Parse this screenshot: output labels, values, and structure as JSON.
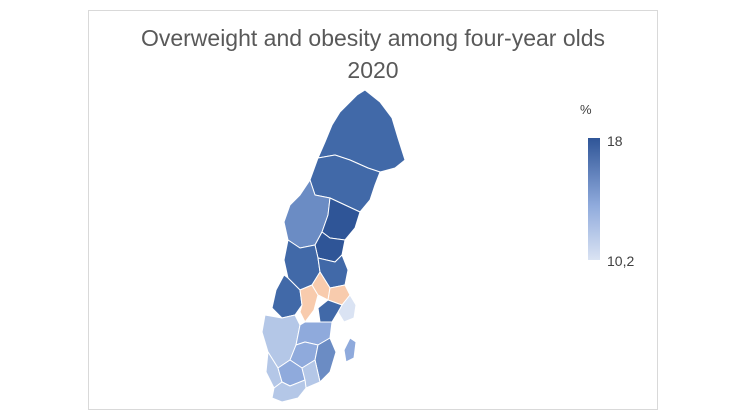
{
  "title": {
    "line1": "Overweight and obesity among four-year olds",
    "line2": "2020"
  },
  "legend": {
    "unit": "%",
    "max_label": "18",
    "min_label": "10,2",
    "max_color": "#2f5597",
    "min_color": "#dae3f3"
  },
  "colors": {
    "high": "#2f5597",
    "mid_high": "#4169a8",
    "mid": "#6b8cc4",
    "mid_low": "#8faadc",
    "low": "#b4c7e7",
    "lowest": "#dae3f3",
    "no_data": "#f8cbad"
  }
}
